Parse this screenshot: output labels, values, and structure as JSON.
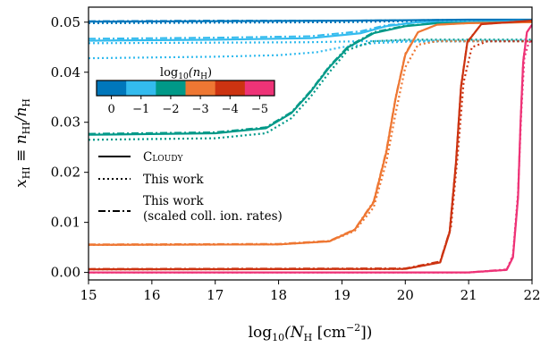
{
  "chart_data": {
    "type": "line",
    "xlim": [
      15,
      22
    ],
    "ylim": [
      -0.0015,
      0.053
    ],
    "x_ticks": [
      "15",
      "16",
      "17",
      "18",
      "19",
      "20",
      "21",
      "22"
    ],
    "y_ticks": [
      "0.00",
      "0.01",
      "0.02",
      "0.03",
      "0.04",
      "0.05"
    ],
    "xlabel": {
      "pre": "log",
      "sub1": "10",
      "mid": "(N",
      "sub2": "H",
      "post": " [cm",
      "sup": "−2",
      "end": "])"
    },
    "ylabel": {
      "pre": "x",
      "sub1": "HI",
      "mid": " ≡ n",
      "sub2": "HI",
      "mid2": "/n",
      "sub3": "H"
    },
    "grid": false,
    "legend": {
      "placement": "center-left",
      "entries": [
        {
          "style": "solid",
          "label_main": "Cloudy",
          "label_sub": ""
        },
        {
          "style": "dotted",
          "label_main": "This work",
          "label_sub": ""
        },
        {
          "style": "dashdot",
          "label_main": "This work",
          "label_sub": "(scaled coll. ion. rates)"
        }
      ]
    },
    "colorbar": {
      "title": {
        "pre": "log",
        "sub1": "10",
        "mid": "(n",
        "sub2": "H",
        "end": ")"
      },
      "ticks": [
        "0",
        "−1",
        "−2",
        "−3",
        "−4",
        "−5"
      ],
      "colors": [
        "#0077BB",
        "#33BBEE",
        "#009988",
        "#EE7733",
        "#CC3311",
        "#EE3377"
      ]
    },
    "series": [
      {
        "color": "#0077BB",
        "solid": [
          [
            15,
            0.0501
          ],
          [
            17,
            0.0502
          ],
          [
            19,
            0.0503
          ],
          [
            20,
            0.0504
          ],
          [
            21,
            0.0505
          ],
          [
            22,
            0.0505
          ]
        ],
        "dotted": [
          [
            15,
            0.0498
          ],
          [
            17,
            0.0499
          ],
          [
            19,
            0.05
          ],
          [
            20,
            0.0502
          ],
          [
            21,
            0.0503
          ],
          [
            22,
            0.0503
          ]
        ],
        "dashdot": [
          [
            15,
            0.0502
          ],
          [
            17,
            0.0503
          ],
          [
            19,
            0.0503
          ],
          [
            20,
            0.0504
          ],
          [
            21,
            0.0505
          ],
          [
            22,
            0.0505
          ]
        ]
      },
      {
        "color": "#33BBEE",
        "solid": [
          [
            15,
            0.0463
          ],
          [
            17,
            0.0465
          ],
          [
            18.5,
            0.0468
          ],
          [
            19.3,
            0.0478
          ],
          [
            19.7,
            0.0492
          ],
          [
            20.2,
            0.05
          ],
          [
            22,
            0.0502
          ]
        ],
        "dotted": [
          [
            15,
            0.0458
          ],
          [
            17,
            0.0459
          ],
          [
            18.5,
            0.046
          ],
          [
            19.3,
            0.0462
          ],
          [
            20,
            0.0463
          ],
          [
            22,
            0.0463
          ]
        ],
        "dashdot": [
          [
            15,
            0.0467
          ],
          [
            17,
            0.0469
          ],
          [
            18.5,
            0.0472
          ],
          [
            19.3,
            0.0482
          ],
          [
            19.7,
            0.0494
          ],
          [
            20.2,
            0.05
          ],
          [
            22,
            0.0502
          ]
        ]
      },
      {
        "color": "#33BBEE",
        "solid": [],
        "dotted": [
          [
            15,
            0.0428
          ],
          [
            17,
            0.0431
          ],
          [
            18,
            0.0434
          ],
          [
            18.6,
            0.044
          ],
          [
            19,
            0.045
          ],
          [
            19.5,
            0.0458
          ],
          [
            20,
            0.0461
          ],
          [
            22,
            0.0462
          ]
        ],
        "dashdot": []
      },
      {
        "color": "#009988",
        "solid": [
          [
            15,
            0.0275
          ],
          [
            17,
            0.0278
          ],
          [
            17.8,
            0.0288
          ],
          [
            18.2,
            0.0318
          ],
          [
            18.5,
            0.036
          ],
          [
            18.8,
            0.041
          ],
          [
            19.1,
            0.045
          ],
          [
            19.5,
            0.0478
          ],
          [
            20,
            0.0492
          ],
          [
            20.5,
            0.0498
          ],
          [
            22,
            0.05
          ]
        ],
        "dotted": [
          [
            15,
            0.0265
          ],
          [
            17,
            0.0268
          ],
          [
            17.8,
            0.0278
          ],
          [
            18.2,
            0.0308
          ],
          [
            18.5,
            0.035
          ],
          [
            18.8,
            0.04
          ],
          [
            19.1,
            0.0445
          ],
          [
            19.5,
            0.0462
          ],
          [
            20,
            0.0465
          ],
          [
            22,
            0.0465
          ]
        ],
        "dashdot": [
          [
            15,
            0.0277
          ],
          [
            17,
            0.028
          ],
          [
            17.8,
            0.029
          ],
          [
            18.2,
            0.032
          ],
          [
            18.5,
            0.0362
          ],
          [
            18.8,
            0.0412
          ],
          [
            19.1,
            0.0452
          ],
          [
            19.5,
            0.048
          ],
          [
            20,
            0.0493
          ],
          [
            20.5,
            0.0498
          ],
          [
            22,
            0.05
          ]
        ]
      },
      {
        "color": "#EE7733",
        "solid": [
          [
            15,
            0.0055
          ],
          [
            18,
            0.0056
          ],
          [
            18.8,
            0.0062
          ],
          [
            19.2,
            0.0085
          ],
          [
            19.5,
            0.014
          ],
          [
            19.7,
            0.024
          ],
          [
            19.85,
            0.035
          ],
          [
            20,
            0.0435
          ],
          [
            20.2,
            0.048
          ],
          [
            20.5,
            0.0495
          ],
          [
            21,
            0.0498
          ],
          [
            22,
            0.05
          ]
        ],
        "dotted": [
          [
            15,
            0.0055
          ],
          [
            18,
            0.0056
          ],
          [
            18.8,
            0.0062
          ],
          [
            19.2,
            0.0083
          ],
          [
            19.5,
            0.013
          ],
          [
            19.7,
            0.022
          ],
          [
            19.85,
            0.032
          ],
          [
            20,
            0.041
          ],
          [
            20.2,
            0.0455
          ],
          [
            20.5,
            0.0462
          ],
          [
            22,
            0.0462
          ]
        ],
        "dashdot": [
          [
            15,
            0.0056
          ],
          [
            18,
            0.0057
          ],
          [
            18.8,
            0.0063
          ],
          [
            19.2,
            0.0086
          ],
          [
            19.5,
            0.0142
          ],
          [
            19.7,
            0.0243
          ],
          [
            19.85,
            0.0352
          ],
          [
            20,
            0.0437
          ],
          [
            20.2,
            0.048
          ],
          [
            20.5,
            0.0495
          ],
          [
            21,
            0.0498
          ],
          [
            22,
            0.05
          ]
        ]
      },
      {
        "color": "#CC3311",
        "solid": [
          [
            15,
            0.0006
          ],
          [
            20,
            0.0007
          ],
          [
            20.55,
            0.002
          ],
          [
            20.7,
            0.008
          ],
          [
            20.8,
            0.022
          ],
          [
            20.88,
            0.037
          ],
          [
            20.98,
            0.046
          ],
          [
            21.2,
            0.0496
          ],
          [
            22,
            0.0503
          ]
        ],
        "dotted": [
          [
            15,
            0.0006
          ],
          [
            20,
            0.0007
          ],
          [
            20.55,
            0.002
          ],
          [
            20.72,
            0.009
          ],
          [
            20.83,
            0.024
          ],
          [
            20.92,
            0.038
          ],
          [
            21.05,
            0.045
          ],
          [
            21.3,
            0.0462
          ],
          [
            22,
            0.0462
          ]
        ],
        "dashdot": [
          [
            15,
            0.0007
          ],
          [
            20,
            0.0008
          ],
          [
            20.55,
            0.0022
          ],
          [
            20.7,
            0.0083
          ],
          [
            20.8,
            0.0222
          ],
          [
            20.88,
            0.0372
          ],
          [
            20.98,
            0.0461
          ],
          [
            21.2,
            0.0496
          ],
          [
            22,
            0.0503
          ]
        ]
      },
      {
        "color": "#EE3377",
        "solid": [
          [
            15,
            0
          ],
          [
            21,
            0
          ],
          [
            21.6,
            0.0005
          ],
          [
            21.7,
            0.003
          ],
          [
            21.78,
            0.015
          ],
          [
            21.82,
            0.03
          ],
          [
            21.86,
            0.042
          ],
          [
            21.92,
            0.048
          ],
          [
            22,
            0.0495
          ]
        ],
        "dotted": [
          [
            15,
            0
          ],
          [
            21,
            0
          ],
          [
            21.6,
            0.0005
          ],
          [
            21.7,
            0.0035
          ],
          [
            21.78,
            0.016
          ],
          [
            21.83,
            0.032
          ],
          [
            21.88,
            0.043
          ],
          [
            21.95,
            0.046
          ],
          [
            22,
            0.0462
          ]
        ],
        "dashdot": [
          [
            15,
            0
          ],
          [
            21,
            0
          ],
          [
            21.6,
            0.0006
          ],
          [
            21.7,
            0.0032
          ],
          [
            21.78,
            0.0152
          ],
          [
            21.82,
            0.0302
          ],
          [
            21.86,
            0.0422
          ],
          [
            21.92,
            0.048
          ],
          [
            22,
            0.0495
          ]
        ]
      }
    ]
  }
}
